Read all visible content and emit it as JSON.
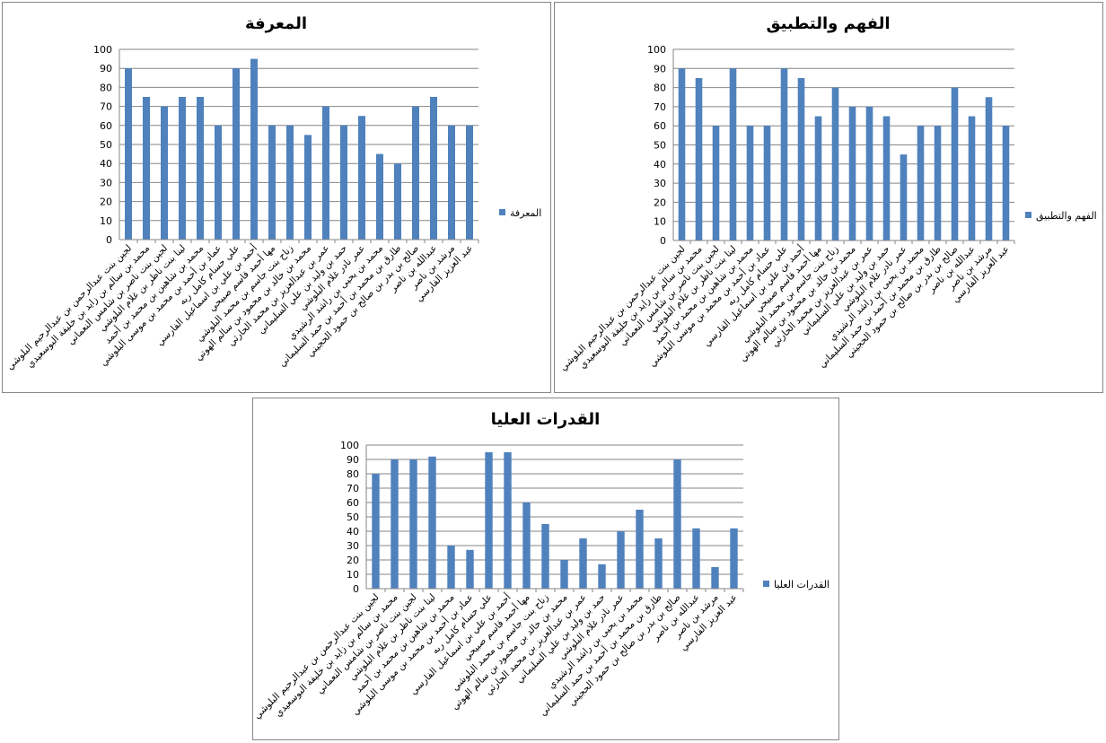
{
  "chart_data": [
    {
      "type": "bar",
      "title": "المعرفة",
      "categories": [
        "لجين بنت عبدالرحمن بن عبدالرحيم البلوشي",
        "محمد بن سالم بن زايد بن خليفة البوسعيدي",
        "لجين بنت ناصر بن شامس النعماني",
        "لينا بنت ناظر بن غلام البلوشي",
        "محمد بن شاهين بن محمد بن أحمد",
        "عماد بن أحمد بن محمد بن موسى البلوشي",
        "علي حسام كامل ربه",
        "أحمد بن علي بن اسماعيل الفارسي",
        "مها أحمد قاسم صبيحي",
        "زناح بنت جاسم بن محمد البلوشي",
        "محمد بن خالد بن محمود بن سالم الهوتي",
        "عمر بن عبدالعزيز بن محمد الحارثي",
        "حمد بن وليد بن علي السليماني",
        "عمر نادر غلام البلوشي",
        "محمد بن يحيى بن راشد الرشيدي",
        "طارق بن محمد بن أحمد بن حمد السليماني",
        "صالح بن بدر بن صالح بن حمود الحجيني",
        "عبدالله بن ناصر",
        "مرشد بن ناصر",
        "عبد العزيز الفارسي"
      ],
      "series": [
        {
          "name": "المعرفة",
          "color": "#4f81bd",
          "values": [
            90,
            75,
            70,
            75,
            75,
            60,
            90,
            95,
            60,
            60,
            55,
            70,
            60,
            65,
            45,
            40,
            70,
            75,
            60,
            60
          ]
        }
      ],
      "ylim": [
        0,
        100
      ],
      "yticks": [
        0,
        10,
        20,
        30,
        40,
        50,
        60,
        70,
        80,
        90,
        100
      ],
      "grid": true,
      "legend": "right"
    },
    {
      "type": "bar",
      "title": "الفهم والتطبيق",
      "categories": [
        "لجين بنت عبدالرحمن بن عبدالرحيم البلوشي",
        "محمد بن سالم بن زايد بن خليفة البوسعيدي",
        "لجين بنت ناصر بن شامس النعماني",
        "لينا بنت ناظر بن غلام البلوشي",
        "محمد بن شاهين بن محمد بن أحمد",
        "عماد بن أحمد بن محمد بن موسى البلوشي",
        "علي حسام كامل ربه",
        "أحمد بن علي بن اسماعيل الفارسي",
        "مها أحمد قاسم صبيحي",
        "زناح بنت جاسم بن محمد البلوشي",
        "محمد بن خالد بن محمود بن سالم الهوتي",
        "عمر بن عبدالعزيز بن محمد الحارثي",
        "حمد بن وليد بن علي السليماني",
        "عمر نادر غلام البلوشي",
        "محمد بن يحيى بن راشد الرشيدي",
        "طارق بن محمد بن أحمد بن حمد السليماني",
        "صالح بن بدر بن صالح بن حمود الحجيني",
        "عبدالله بن ناصر",
        "مرشد بن ناصر",
        "عبد العزيز الفارسي"
      ],
      "series": [
        {
          "name": "الفهم والتطبيق",
          "color": "#4f81bd",
          "values": [
            90,
            85,
            60,
            90,
            60,
            60,
            90,
            85,
            65,
            80,
            70,
            70,
            65,
            45,
            60,
            60,
            80,
            65,
            75,
            60
          ]
        }
      ],
      "ylim": [
        0,
        100
      ],
      "yticks": [
        0,
        10,
        20,
        30,
        40,
        50,
        60,
        70,
        80,
        90,
        100
      ],
      "grid": true,
      "legend": "right"
    },
    {
      "type": "bar",
      "title": "القدرات العليا",
      "categories": [
        "لجين بنت عبدالرحمن بن عبدالرحيم البلوشي",
        "محمد بن سالم بن زايد بن خليفة البوسعيدي",
        "لجين بنت ناصر بن شامس النعماني",
        "لينا بنت ناظر بن غلام البلوشي",
        "محمد بن شاهين بن محمد بن أحمد",
        "عماد بن أحمد بن محمد بن موسى البلوشي",
        "علي حسام كامل ربه",
        "أحمد بن علي بن اسماعيل الفارسي",
        "مها أحمد قاسم صبيحي",
        "زناح بنت جاسم بن محمد البلوشي",
        "محمد بن خالد بن محمود بن سالم الهوتي",
        "عمر بن عبدالعزيز بن محمد الحارثي",
        "حمد بن وليد بن علي السليماني",
        "عمر نادر غلام البلوشي",
        "محمد بن يحيى بن راشد الرشيدي",
        "طارق بن محمد بن أحمد بن حمد السليماني",
        "صالح بن بدر بن صالح بن حمود الحجيني",
        "عبدالله بن ناصر",
        "مرشد بن ناصر",
        "عبد العزيز الفارسي"
      ],
      "series": [
        {
          "name": "القدرات العليا",
          "color": "#4f81bd",
          "values": [
            80,
            90,
            90,
            92,
            30,
            27,
            95,
            95,
            60,
            45,
            20,
            35,
            17,
            40,
            55,
            35,
            90,
            42,
            15,
            42
          ]
        }
      ],
      "ylim": [
        0,
        100
      ],
      "yticks": [
        0,
        10,
        20,
        30,
        40,
        50,
        60,
        70,
        80,
        90,
        100
      ],
      "grid": true,
      "legend": "right"
    }
  ]
}
